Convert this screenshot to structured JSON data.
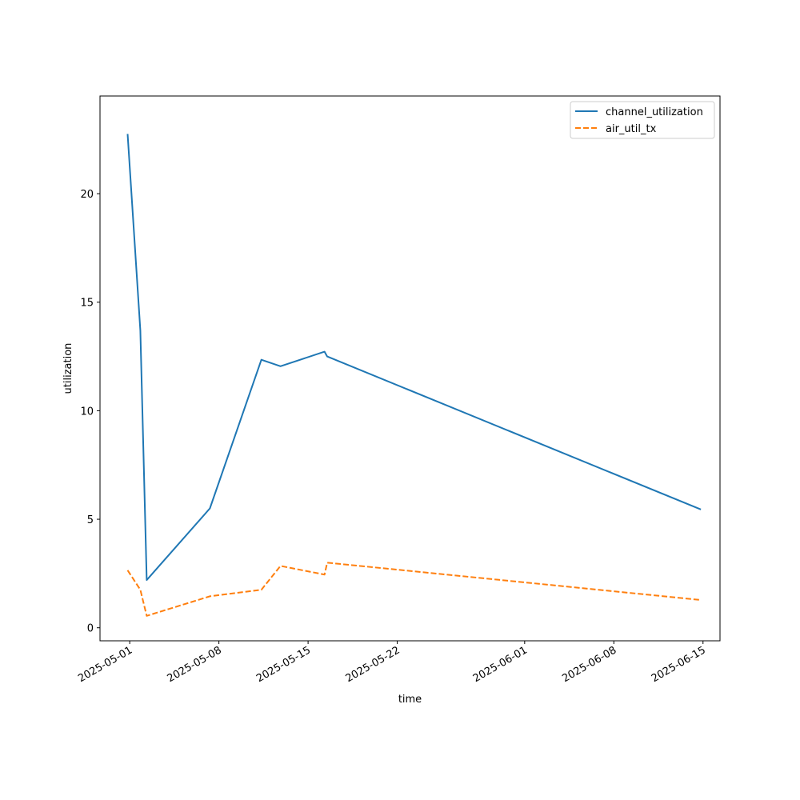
{
  "chart_data": {
    "type": "line",
    "title": "",
    "xlabel": "time",
    "ylabel": "utilization",
    "xlim": [
      "2025-04-28T16:00",
      "2025-06-16T08:00"
    ],
    "ylim": [
      -0.6,
      24.5
    ],
    "x_ticks": [
      "2025-05-01",
      "2025-05-08",
      "2025-05-15",
      "2025-05-22",
      "2025-06-01",
      "2025-06-08",
      "2025-06-15"
    ],
    "y_ticks": [
      0,
      5,
      10,
      15,
      20
    ],
    "grid": false,
    "legend_position": "top-right",
    "series": [
      {
        "name": "channel_utilization",
        "color": "#1f77b4",
        "style": "solid",
        "points": [
          {
            "x": "2025-04-30T20:00",
            "y": 22.75
          },
          {
            "x": "2025-05-01T20:00",
            "y": 13.7
          },
          {
            "x": "2025-05-02T08:00",
            "y": 2.2
          },
          {
            "x": "2025-05-07T07:00",
            "y": 5.5
          },
          {
            "x": "2025-05-11T08:00",
            "y": 12.35
          },
          {
            "x": "2025-05-12T20:00",
            "y": 12.05
          },
          {
            "x": "2025-05-16T07:00",
            "y": 12.72
          },
          {
            "x": "2025-05-16T12:00",
            "y": 12.5
          },
          {
            "x": "2025-06-14T20:00",
            "y": 5.45
          }
        ]
      },
      {
        "name": "air_util_tx",
        "color": "#ff7f0e",
        "style": "dashed",
        "points": [
          {
            "x": "2025-04-30T20:00",
            "y": 2.65
          },
          {
            "x": "2025-05-01T20:00",
            "y": 1.75
          },
          {
            "x": "2025-05-02T08:00",
            "y": 0.55
          },
          {
            "x": "2025-05-07T07:00",
            "y": 1.45
          },
          {
            "x": "2025-05-11T08:00",
            "y": 1.75
          },
          {
            "x": "2025-05-12T20:00",
            "y": 2.85
          },
          {
            "x": "2025-05-16T07:00",
            "y": 2.45
          },
          {
            "x": "2025-05-16T12:00",
            "y": 3.0
          },
          {
            "x": "2025-06-14T20:00",
            "y": 1.28
          }
        ]
      }
    ]
  }
}
